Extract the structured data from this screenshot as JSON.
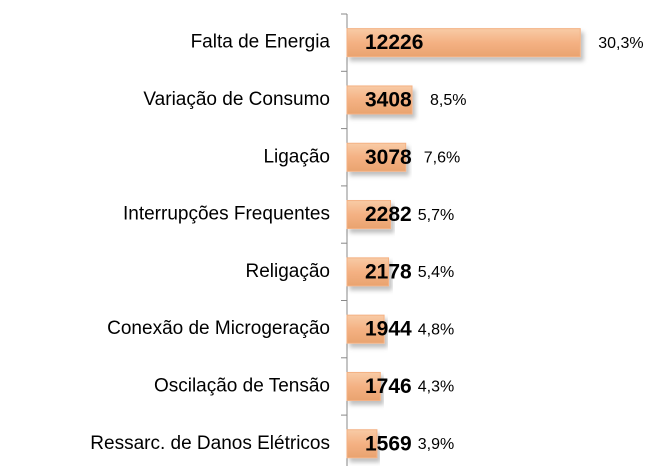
{
  "chart_data": {
    "type": "bar",
    "orientation": "horizontal",
    "categories": [
      "Falta de Energia",
      "Variação de Consumo",
      "Ligação",
      "Interrupções Frequentes",
      "Religação",
      "Conexão de Microgeração",
      "Oscilação de Tensão",
      "Ressarc. de Danos Elétricos"
    ],
    "values": [
      12226,
      3408,
      3078,
      2282,
      2178,
      1944,
      1746,
      1569
    ],
    "shares": [
      30.3,
      8.5,
      7.6,
      5.7,
      5.4,
      4.8,
      4.3,
      3.9
    ],
    "share_labels": [
      "30,3%",
      "8,5%",
      "7,6%",
      "5,7%",
      "5,4%",
      "4,8%",
      "4,3%",
      "3,9%"
    ],
    "color": "#f4b183",
    "xlim": [
      0,
      13000
    ]
  }
}
